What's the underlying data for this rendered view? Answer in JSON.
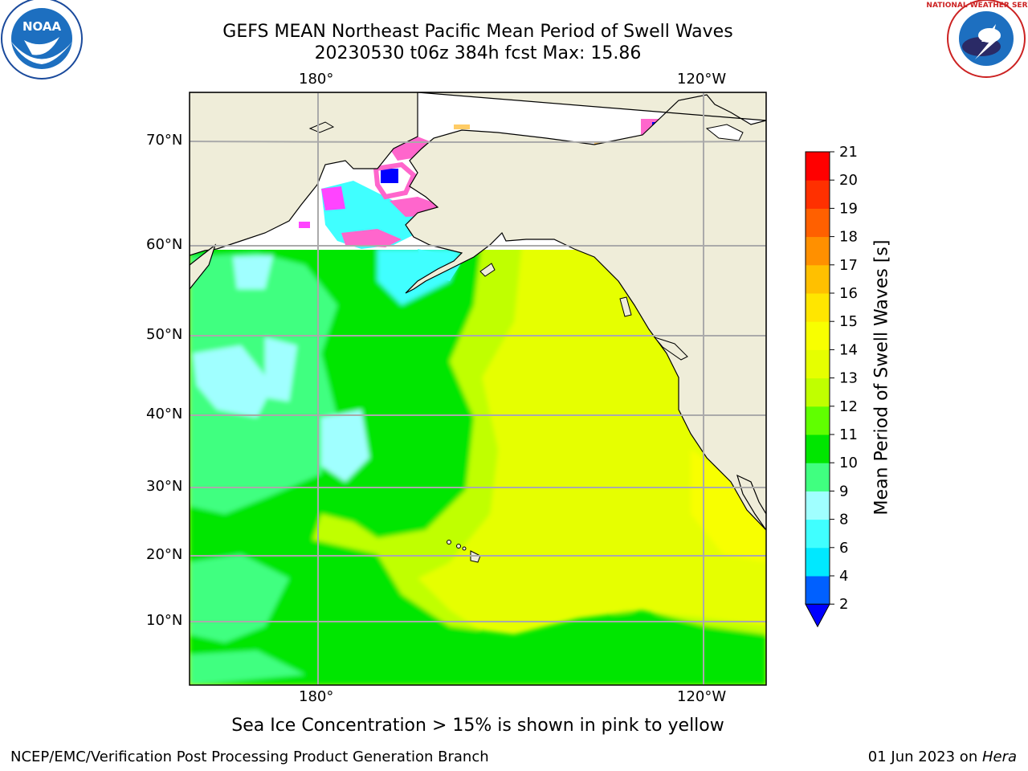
{
  "title_line1": "GEFS MEAN Northeast Pacific Mean Period of Swell Waves",
  "title_line2": "20230530 t06z 384h fcst   Max: 15.86",
  "logos": {
    "left": {
      "name": "noaa-logo",
      "text": "NOAA",
      "ring_text": "NATIONAL OCEANIC AND ATMOSPHERIC ADMINISTRATION · U.S. DEPARTMENT OF COMMERCE"
    },
    "right": {
      "name": "nws-logo",
      "ring_text": "NATIONAL WEATHER SERVICE"
    }
  },
  "map": {
    "lon_labels_top": [
      "180°",
      "120°W"
    ],
    "lon_labels_bottom": [
      "180°",
      "120°W"
    ],
    "lat_labels": [
      "70°N",
      "60°N",
      "50°N",
      "40°N",
      "30°N",
      "20°N",
      "10°N"
    ]
  },
  "colorbar": {
    "label": "Mean Period of Swell Waves [s]",
    "ticks": [
      "2",
      "4",
      "6",
      "8",
      "9",
      "10",
      "11",
      "12",
      "13",
      "14",
      "15",
      "16",
      "17",
      "18",
      "19",
      "20",
      "21"
    ],
    "colors": [
      "#0060ff",
      "#00e8ff",
      "#40ffff",
      "#a0ffff",
      "#40ff80",
      "#00e600",
      "#60ff00",
      "#c0ff00",
      "#e6ff00",
      "#f8ff00",
      "#ffe600",
      "#ffc000",
      "#ff9000",
      "#ff6000",
      "#ff3000",
      "#ff0000"
    ],
    "extend_color": "#0000ff"
  },
  "caption": "Sea Ice Concentration > 15% is shown in pink to yellow",
  "footer_left": "NCEP/EMC/Verification Post Processing Product Generation Branch",
  "footer_right_prefix": "01 Jun 2023 on ",
  "footer_right_italic": "Hera",
  "colors": {
    "land": "#efedd9",
    "ocean_yellow": "#e6ff00",
    "ocean_lime": "#c0ff00",
    "ocean_green": "#00e600",
    "ocean_mint": "#40ff80",
    "ocean_cyan": "#a0ffff",
    "ice_pink": "#ff66cc",
    "ice_magenta": "#ff44ff",
    "ice_blue": "#0000ff",
    "ice_yellow": "#ffcc66"
  }
}
